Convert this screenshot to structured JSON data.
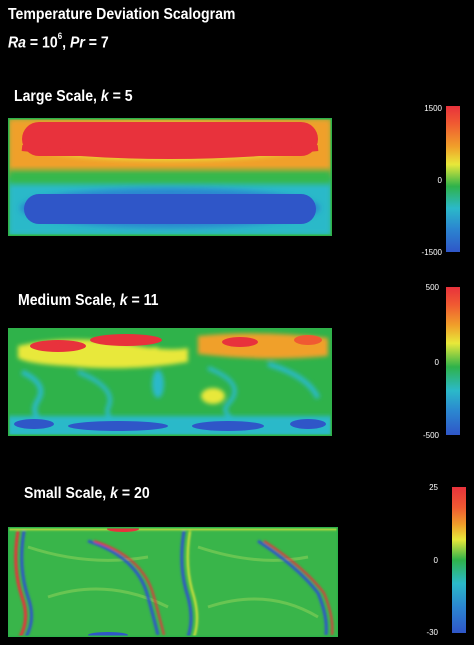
{
  "figure": {
    "title": "Temperature Deviation Scalogram",
    "params": {
      "ra_label": "Ra",
      "ra_value": "= 10",
      "ra_exp": "6",
      "pr_label": "Pr",
      "pr_value": "= 7"
    }
  },
  "panels": [
    {
      "label": "Large Scale, ",
      "k_label": "k",
      "k_value": " = 5",
      "colorbar": {
        "max": "1500",
        "mid": "0",
        "min": "-1500"
      }
    },
    {
      "label": "Medium Scale, ",
      "k_label": "k",
      "k_value": " = 11",
      "colorbar": {
        "max": "500",
        "mid": "0",
        "min": "-500"
      }
    },
    {
      "label": "Small Scale, ",
      "k_label": "k",
      "k_value": " = 20",
      "colorbar": {
        "max": "25",
        "mid": "0",
        "min": "-30"
      }
    }
  ],
  "colors": {
    "hot": "#e8323c",
    "warm": "#f0a02a",
    "yellow": "#e8e83a",
    "green": "#2fb24a",
    "cyan": "#2bb9c9",
    "cold": "#2f56c8",
    "background": "#000000"
  }
}
